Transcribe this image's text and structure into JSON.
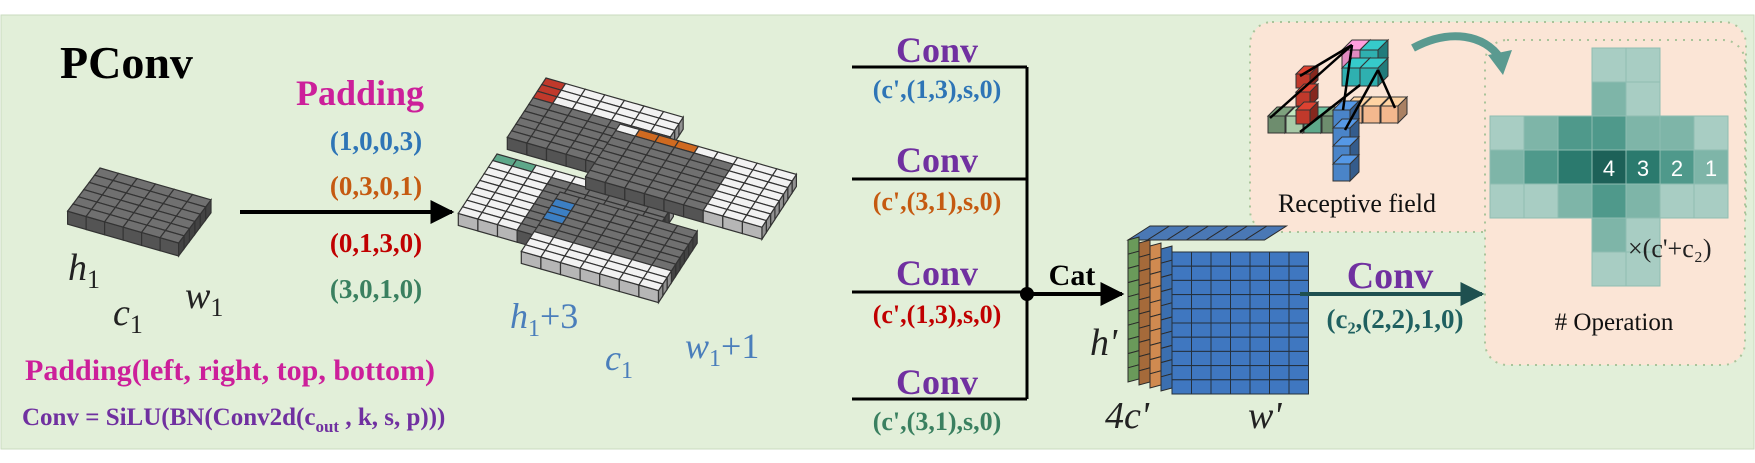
{
  "title": "PConv",
  "padding": {
    "label": "Padding",
    "values": [
      "(1,0,0,3)",
      "(0,3,0,1)",
      "(0,1,3,0)",
      "(3,0,1,0)"
    ]
  },
  "input_dims": {
    "h": "h",
    "h_sub": "1",
    "c": "c",
    "c_sub": "1",
    "w": "w",
    "w_sub": "1"
  },
  "padded_dims": {
    "h": "h",
    "h_sub": "1",
    "h_plus": "+3",
    "c": "c",
    "c_sub": "1",
    "w": "w",
    "w_sub": "1",
    "w_plus": "+1"
  },
  "legend": {
    "padding_def": "Padding(left, right, top, bottom)",
    "conv_def_prefix": "Conv = SiLU(BN(Conv2d(c",
    "conv_def_sub": "out",
    "conv_def_suffix": " , k, s, p)))"
  },
  "branches": [
    {
      "label": "Conv",
      "params": "(c',(1,3),s,0)"
    },
    {
      "label": "Conv",
      "params": "(c',(3,1),s,0)"
    },
    {
      "label": "Conv",
      "params": "(c',(1,3),s,0)"
    },
    {
      "label": "Conv",
      "params": "(c',(3,1),s,0)"
    }
  ],
  "cat_label": "Cat",
  "output_dims": {
    "h": "h'",
    "c": "4c'",
    "w": "w'"
  },
  "final_conv": {
    "label": "Conv",
    "params": "(c₂,(2,2),1,0)"
  },
  "receptive_field": {
    "label": "Receptive field",
    "numbers": [
      "4",
      "3",
      "2",
      "1"
    ],
    "multiplier": "×(c'+c₂)",
    "operation_label": "# Operation"
  },
  "colors": {
    "background": "#e2efd9",
    "magenta": "#cc1f9a",
    "purple": "#7030a0",
    "blue": "#2e75b6",
    "orange": "#c55a11",
    "red": "#c00000",
    "green": "#3a8060",
    "teal": "#1f6e6e",
    "panel": "#fbe5d6",
    "dark_cell": "#707070",
    "light_cell": "#f2f2f2"
  }
}
